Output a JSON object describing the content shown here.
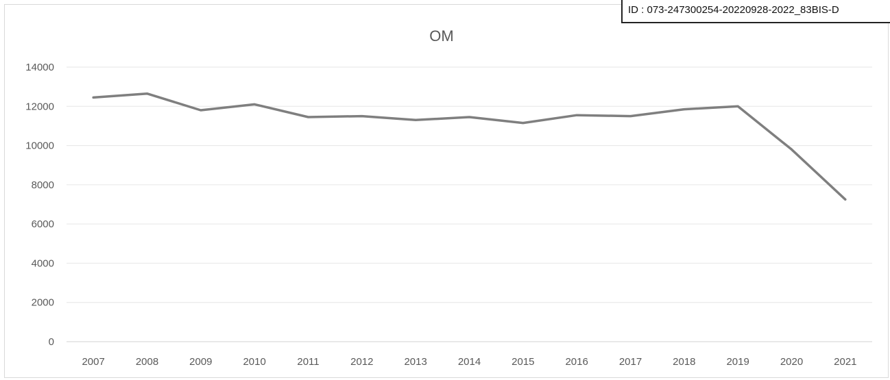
{
  "stamp": {
    "text": "ID : 073-247300254-20220928-2022_83BIS-D"
  },
  "chart_data": {
    "type": "line",
    "title": "OM",
    "xlabel": "",
    "ylabel": "",
    "x": [
      "2007",
      "2008",
      "2009",
      "2010",
      "2011",
      "2012",
      "2013",
      "2014",
      "2015",
      "2016",
      "2017",
      "2018",
      "2019",
      "2020",
      "2021"
    ],
    "series": [
      {
        "values": [
          12450,
          12650,
          11800,
          12100,
          11450,
          11500,
          11300,
          11450,
          11150,
          11550,
          11500,
          11850,
          12000,
          9800,
          7250
        ],
        "color": "#7f7f7f"
      }
    ],
    "ylim": [
      0,
      14000
    ],
    "yticks": [
      "0",
      "2000",
      "4000",
      "6000",
      "8000",
      "10000",
      "12000",
      "14000"
    ],
    "grid": true,
    "legend": "none"
  }
}
